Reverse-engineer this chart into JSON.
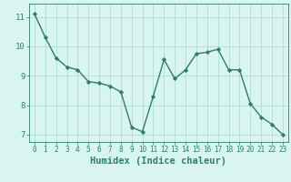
{
  "x": [
    0,
    1,
    2,
    3,
    4,
    5,
    6,
    7,
    8,
    9,
    10,
    11,
    12,
    13,
    14,
    15,
    16,
    17,
    18,
    19,
    20,
    21,
    22,
    23
  ],
  "y": [
    11.1,
    10.3,
    9.6,
    9.3,
    9.2,
    8.8,
    8.75,
    8.65,
    8.45,
    7.25,
    7.1,
    8.3,
    9.55,
    8.9,
    9.2,
    9.75,
    9.8,
    9.9,
    9.2,
    9.2,
    8.05,
    7.6,
    7.35,
    7.0
  ],
  "line_color": "#2e7d6e",
  "marker": "D",
  "marker_size": 2.2,
  "bg_color": "#d8f5f0",
  "grid_color": "#a8d8d0",
  "xlabel": "Humidex (Indice chaleur)",
  "ylim": [
    6.75,
    11.45
  ],
  "xlim": [
    -0.5,
    23.5
  ],
  "yticks": [
    7,
    8,
    9,
    10,
    11
  ],
  "xticks": [
    0,
    1,
    2,
    3,
    4,
    5,
    6,
    7,
    8,
    9,
    10,
    11,
    12,
    13,
    14,
    15,
    16,
    17,
    18,
    19,
    20,
    21,
    22,
    23
  ],
  "tick_color": "#2e7d6e",
  "label_color": "#2e7d6e",
  "ytick_fontsize": 6.5,
  "xtick_fontsize": 5.5,
  "xlabel_fontsize": 7.5,
  "linewidth": 1.0
}
